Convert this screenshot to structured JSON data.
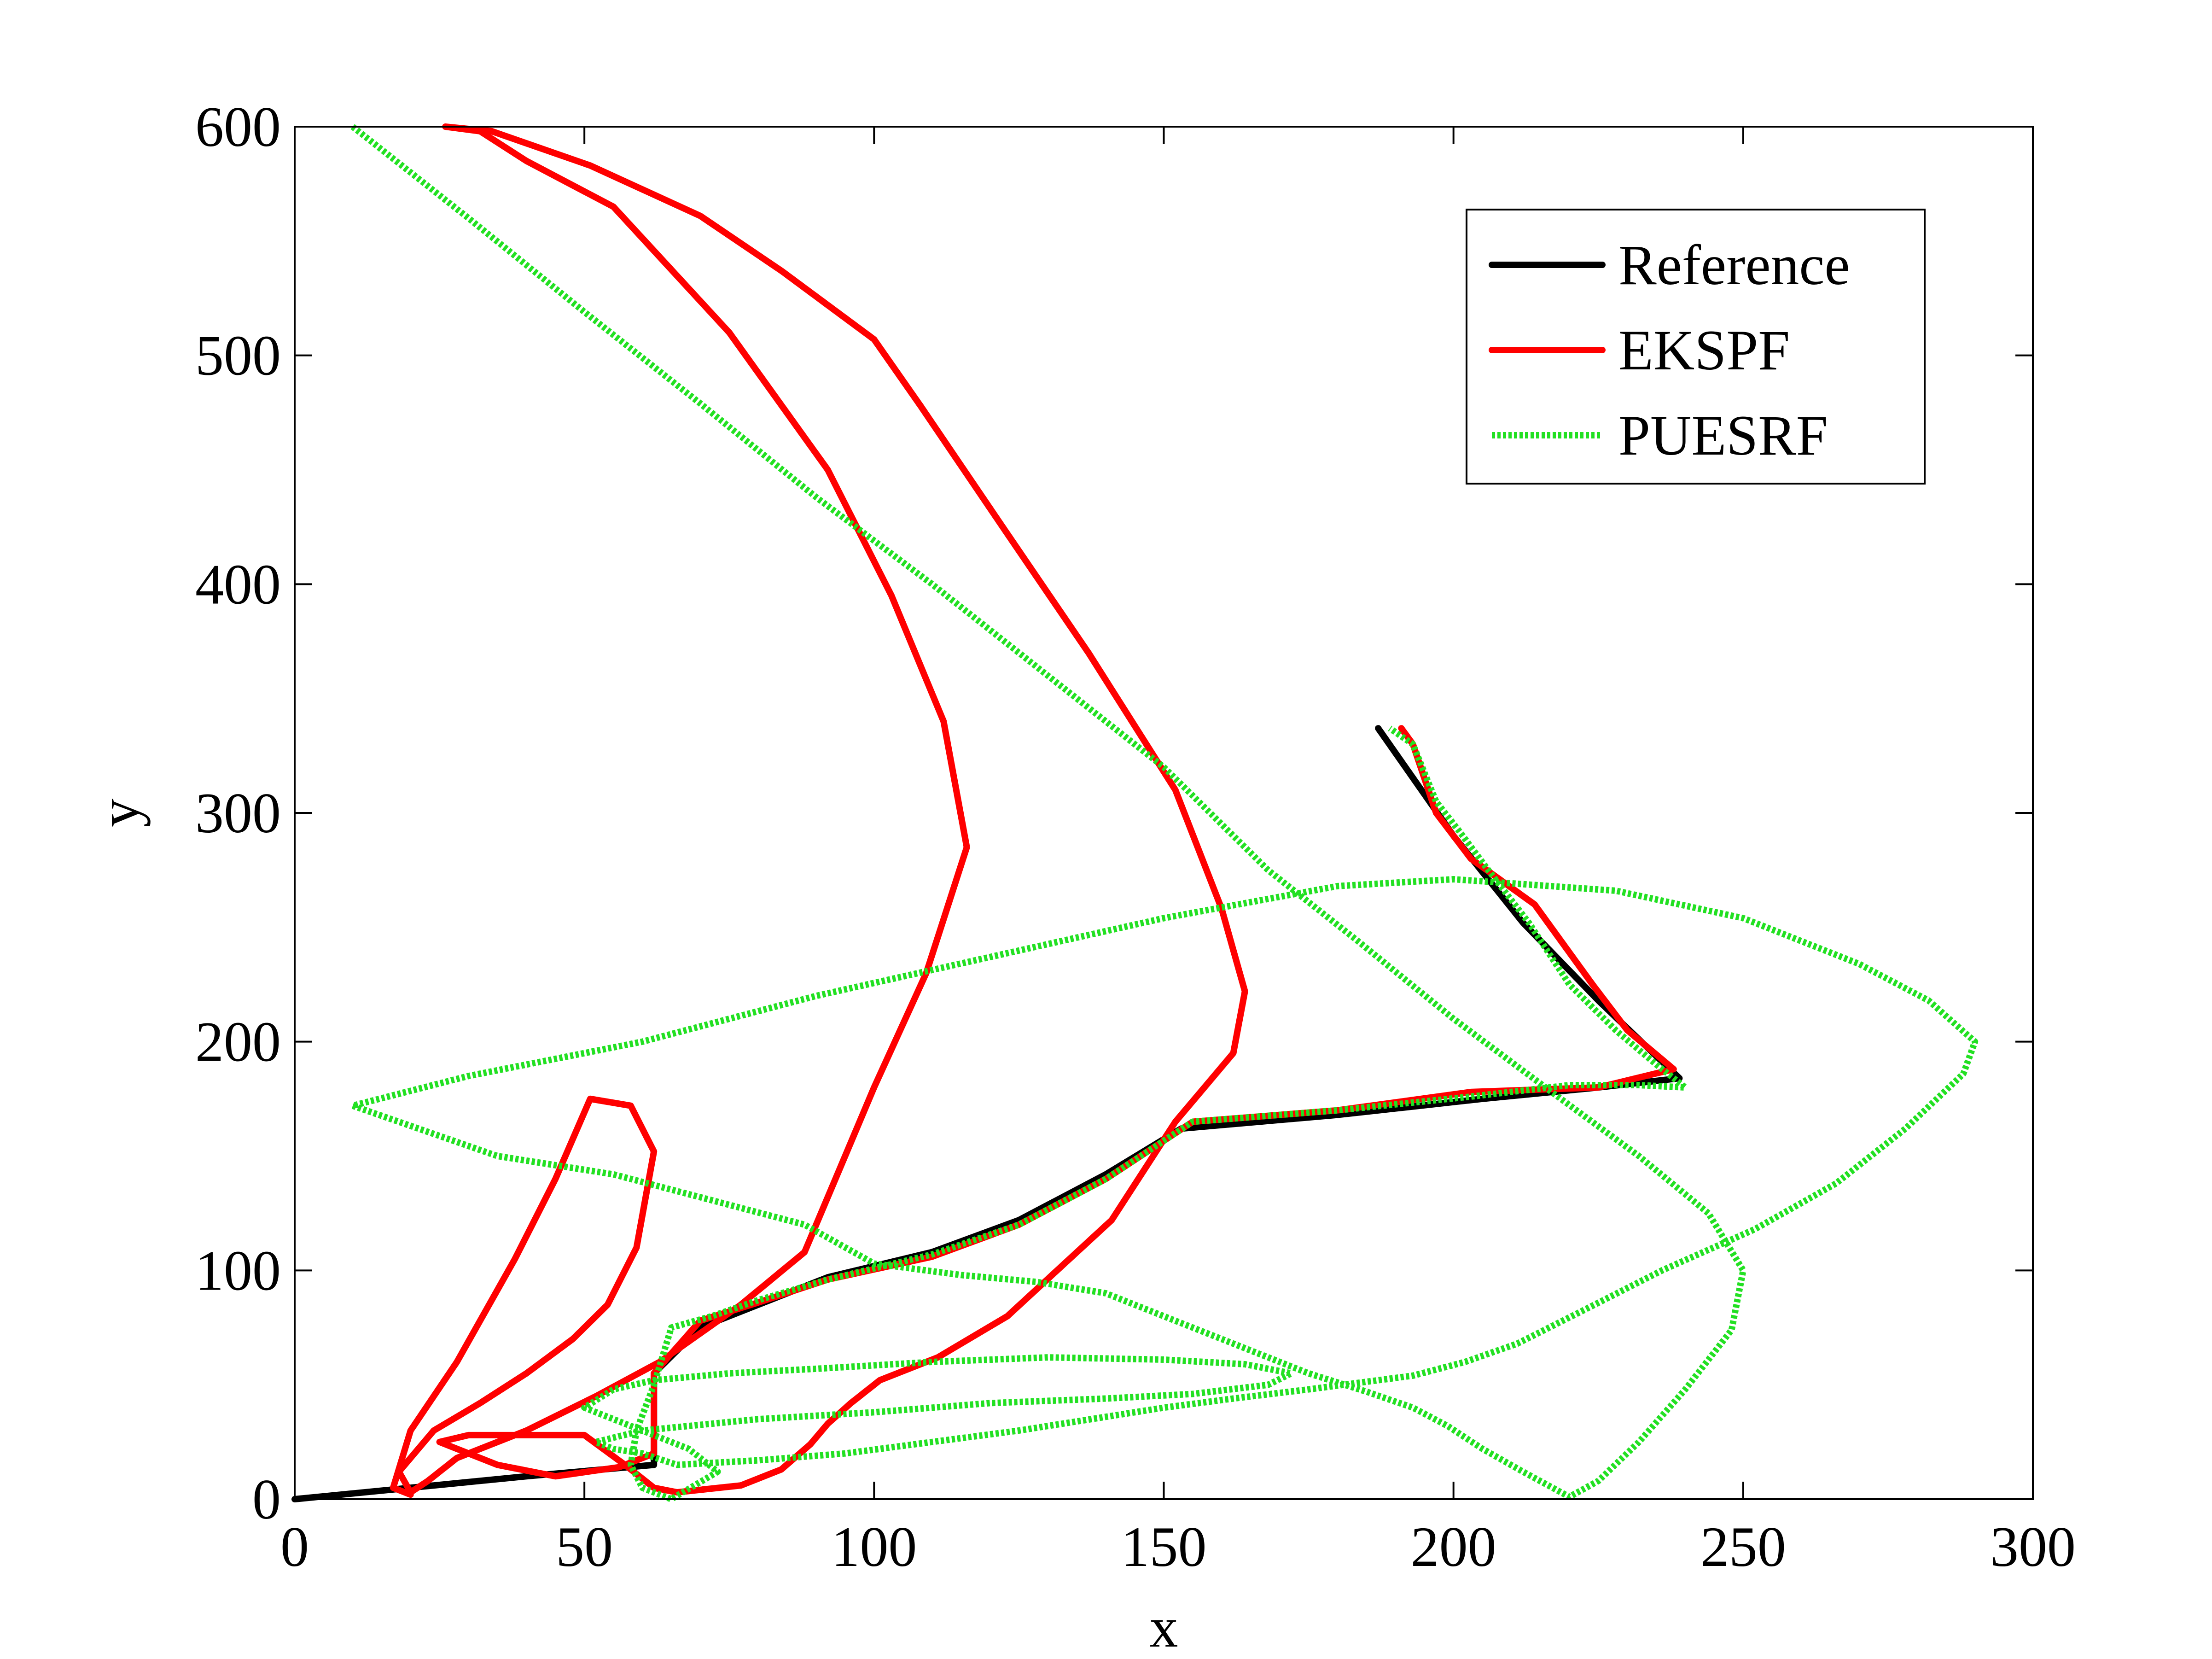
{
  "chart_data": {
    "type": "line",
    "title": "",
    "xlabel": "x",
    "ylabel": "y",
    "xlim": [
      0,
      300
    ],
    "ylim": [
      0,
      600
    ],
    "xticks": [
      0,
      50,
      100,
      150,
      200,
      250,
      300
    ],
    "yticks": [
      0,
      100,
      200,
      300,
      400,
      500,
      600
    ],
    "grid": false,
    "legend_position": "top-right",
    "series": [
      {
        "name": "Reference",
        "color": "#000000",
        "style": "solid",
        "points": [
          [
            0,
            0
          ],
          [
            20,
            5
          ],
          [
            40,
            10
          ],
          [
            62,
            15
          ],
          [
            62,
            55
          ],
          [
            70,
            75
          ],
          [
            80,
            85
          ],
          [
            92,
            97
          ],
          [
            110,
            108
          ],
          [
            125,
            122
          ],
          [
            140,
            142
          ],
          [
            153,
            162
          ],
          [
            180,
            168
          ],
          [
            205,
            175
          ],
          [
            225,
            180
          ],
          [
            239,
            184
          ],
          [
            225,
            218
          ],
          [
            212,
            252
          ],
          [
            200,
            290
          ],
          [
            187,
            337
          ]
        ]
      },
      {
        "name": "EKSPF",
        "color": "#ff0000",
        "style": "solid",
        "points": [
          [
            20,
            2
          ],
          [
            17,
            5
          ],
          [
            20,
            30
          ],
          [
            28,
            60
          ],
          [
            38,
            105
          ],
          [
            45,
            140
          ],
          [
            51,
            175
          ],
          [
            58,
            172
          ],
          [
            62,
            152
          ],
          [
            59,
            110
          ],
          [
            54,
            85
          ],
          [
            48,
            70
          ],
          [
            40,
            55
          ],
          [
            32,
            42
          ],
          [
            24,
            30
          ],
          [
            18,
            12
          ],
          [
            20,
            3
          ],
          [
            23,
            8
          ],
          [
            28,
            18
          ],
          [
            40,
            30
          ],
          [
            52,
            45
          ],
          [
            63,
            60
          ],
          [
            77,
            85
          ],
          [
            88,
            108
          ],
          [
            95,
            150
          ],
          [
            100,
            180
          ],
          [
            109,
            230
          ],
          [
            116,
            285
          ],
          [
            112,
            340
          ],
          [
            103,
            395
          ],
          [
            92,
            450
          ],
          [
            75,
            510
          ],
          [
            55,
            565
          ],
          [
            40,
            585
          ],
          [
            32,
            598
          ],
          [
            26,
            600
          ],
          [
            34,
            598
          ],
          [
            51,
            583
          ],
          [
            70,
            561
          ],
          [
            84,
            537
          ],
          [
            100,
            507
          ],
          [
            108,
            478
          ],
          [
            123,
            422
          ],
          [
            137,
            370
          ],
          [
            152,
            310
          ],
          [
            160,
            258
          ],
          [
            164,
            222
          ],
          [
            162,
            195
          ],
          [
            152,
            165
          ],
          [
            141,
            122
          ],
          [
            123,
            80
          ],
          [
            111,
            62
          ],
          [
            101,
            52
          ],
          [
            96,
            42
          ],
          [
            92,
            33
          ],
          [
            89,
            24
          ],
          [
            84,
            13
          ],
          [
            77,
            6
          ],
          [
            66,
            3
          ],
          [
            62,
            5
          ],
          [
            57,
            15
          ],
          [
            50,
            28
          ],
          [
            40,
            28
          ],
          [
            30,
            28
          ],
          [
            25,
            25
          ],
          [
            35,
            15
          ],
          [
            45,
            10
          ],
          [
            56,
            14
          ],
          [
            62,
            20
          ],
          [
            62,
            55
          ],
          [
            70,
            78
          ],
          [
            80,
            86
          ],
          [
            92,
            96
          ],
          [
            110,
            106
          ],
          [
            125,
            120
          ],
          [
            140,
            140
          ],
          [
            155,
            165
          ],
          [
            180,
            170
          ],
          [
            203,
            178
          ],
          [
            225,
            180
          ],
          [
            238,
            188
          ],
          [
            230,
            205
          ],
          [
            224,
            225
          ],
          [
            214,
            260
          ],
          [
            203,
            280
          ],
          [
            197,
            300
          ],
          [
            193,
            330
          ],
          [
            191,
            337
          ]
        ]
      },
      {
        "name": "PUESRF",
        "color": "#22e022",
        "style": "dotted",
        "points": [
          [
            10,
            600
          ],
          [
            30,
            560
          ],
          [
            50,
            519
          ],
          [
            70,
            479
          ],
          [
            90,
            438
          ],
          [
            110,
            400
          ],
          [
            130,
            360
          ],
          [
            150,
            320
          ],
          [
            158,
            300
          ],
          [
            168,
            275
          ],
          [
            183,
            245
          ],
          [
            200,
            210
          ],
          [
            218,
            176
          ],
          [
            232,
            150
          ],
          [
            244,
            125
          ],
          [
            250,
            100
          ],
          [
            248,
            74
          ],
          [
            240,
            48
          ],
          [
            232,
            25
          ],
          [
            225,
            8
          ],
          [
            220,
            1
          ],
          [
            212,
            12
          ],
          [
            205,
            22
          ],
          [
            199,
            32
          ],
          [
            193,
            40
          ],
          [
            185,
            47
          ],
          [
            175,
            55
          ],
          [
            165,
            65
          ],
          [
            150,
            80
          ],
          [
            140,
            90
          ],
          [
            128,
            95
          ],
          [
            115,
            98
          ],
          [
            100,
            103
          ],
          [
            88,
            120
          ],
          [
            70,
            132
          ],
          [
            55,
            142
          ],
          [
            35,
            150
          ],
          [
            10,
            172
          ],
          [
            30,
            185
          ],
          [
            60,
            200
          ],
          [
            90,
            220
          ],
          [
            120,
            237
          ],
          [
            150,
            254
          ],
          [
            180,
            268
          ],
          [
            200,
            271
          ],
          [
            228,
            266
          ],
          [
            250,
            254
          ],
          [
            270,
            234
          ],
          [
            282,
            218
          ],
          [
            290,
            200
          ],
          [
            288,
            186
          ],
          [
            278,
            162
          ],
          [
            266,
            138
          ],
          [
            252,
            118
          ],
          [
            236,
            100
          ],
          [
            222,
            82
          ],
          [
            211,
            68
          ],
          [
            202,
            60
          ],
          [
            193,
            54
          ],
          [
            175,
            48
          ],
          [
            162,
            44
          ],
          [
            150,
            40
          ],
          [
            140,
            36
          ],
          [
            125,
            30
          ],
          [
            110,
            25
          ],
          [
            95,
            20
          ],
          [
            80,
            17
          ],
          [
            66,
            15
          ],
          [
            60,
            20
          ],
          [
            55,
            22
          ],
          [
            52,
            25
          ],
          [
            60,
            30
          ],
          [
            80,
            35
          ],
          [
            100,
            38
          ],
          [
            120,
            42
          ],
          [
            140,
            44
          ],
          [
            155,
            46
          ],
          [
            168,
            50
          ],
          [
            172,
            55
          ],
          [
            164,
            59
          ],
          [
            150,
            61
          ],
          [
            130,
            62
          ],
          [
            110,
            60
          ],
          [
            90,
            57
          ],
          [
            75,
            55
          ],
          [
            62,
            52
          ],
          [
            55,
            48
          ],
          [
            50,
            40
          ],
          [
            60,
            30
          ],
          [
            68,
            22
          ],
          [
            73,
            12
          ],
          [
            65,
            0
          ],
          [
            60,
            5
          ],
          [
            58,
            15
          ],
          [
            59,
            30
          ],
          [
            62,
            50
          ],
          [
            65,
            75
          ],
          [
            72,
            80
          ],
          [
            80,
            87
          ],
          [
            92,
            96
          ],
          [
            110,
            107
          ],
          [
            125,
            120
          ],
          [
            140,
            140
          ],
          [
            155,
            165
          ],
          [
            180,
            170
          ],
          [
            203,
            176
          ],
          [
            220,
            181
          ],
          [
            232,
            181
          ],
          [
            240,
            180
          ],
          [
            235,
            190
          ],
          [
            228,
            205
          ],
          [
            220,
            225
          ],
          [
            213,
            252
          ],
          [
            206,
            275
          ],
          [
            201,
            292
          ],
          [
            197,
            305
          ],
          [
            193,
            330
          ],
          [
            189,
            337
          ]
        ]
      }
    ]
  }
}
